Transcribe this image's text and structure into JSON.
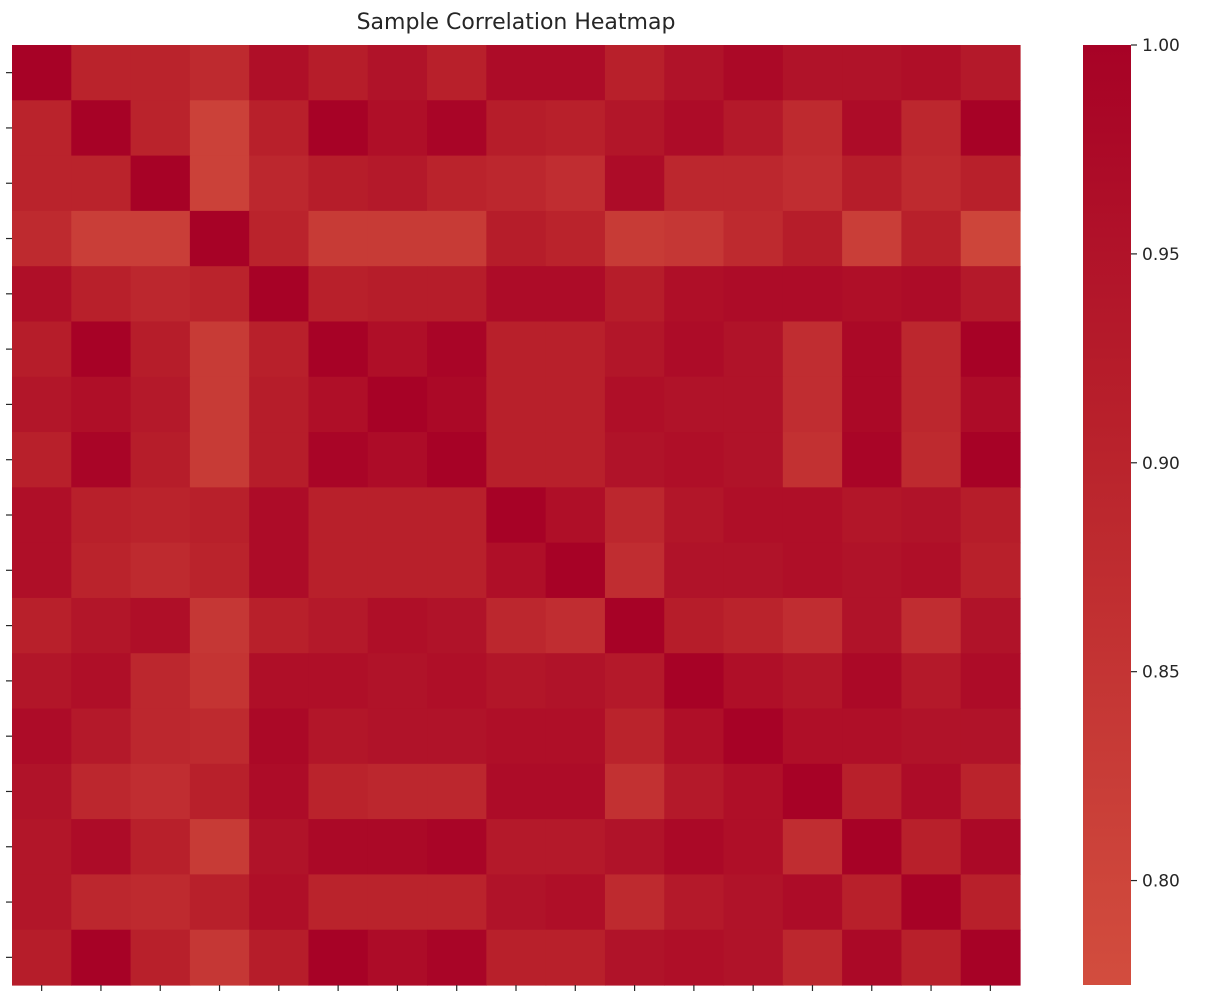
{
  "chart_data": {
    "type": "heatmap",
    "title": "Sample Correlation Heatmap",
    "xlabel": "",
    "ylabel": "",
    "tick_labels_shown": false,
    "rows": 17,
    "cols": 17,
    "colorbar": {
      "min": 0.775,
      "max": 1.0,
      "ticks": [
        0.8,
        0.85,
        0.9,
        0.95,
        1.0
      ],
      "tick_labels": [
        "0.80",
        "0.85",
        "0.90",
        "0.95",
        "1.00"
      ],
      "colors": {
        "low": "#d24d3e",
        "mid": "#b8202b",
        "high": "#a70226"
      }
    },
    "matrix": [
      [
        1.0,
        0.9,
        0.9,
        0.88,
        0.96,
        0.92,
        0.95,
        0.91,
        0.97,
        0.97,
        0.91,
        0.95,
        0.98,
        0.95,
        0.95,
        0.96,
        0.93
      ],
      [
        0.9,
        1.0,
        0.9,
        0.81,
        0.91,
        1.0,
        0.96,
        0.99,
        0.92,
        0.91,
        0.94,
        0.97,
        0.93,
        0.88,
        0.97,
        0.89,
        1.0
      ],
      [
        0.9,
        0.9,
        1.0,
        0.81,
        0.89,
        0.92,
        0.93,
        0.9,
        0.89,
        0.87,
        0.97,
        0.89,
        0.89,
        0.87,
        0.92,
        0.88,
        0.91
      ],
      [
        0.88,
        0.82,
        0.82,
        1.0,
        0.9,
        0.83,
        0.83,
        0.83,
        0.92,
        0.9,
        0.83,
        0.84,
        0.88,
        0.92,
        0.82,
        0.91,
        0.8
      ],
      [
        0.96,
        0.91,
        0.89,
        0.9,
        1.0,
        0.91,
        0.92,
        0.92,
        0.97,
        0.97,
        0.92,
        0.96,
        0.97,
        0.97,
        0.96,
        0.97,
        0.93
      ],
      [
        0.92,
        1.0,
        0.92,
        0.83,
        0.91,
        1.0,
        0.96,
        0.99,
        0.91,
        0.91,
        0.94,
        0.97,
        0.95,
        0.87,
        0.98,
        0.89,
        1.0
      ],
      [
        0.94,
        0.96,
        0.93,
        0.83,
        0.92,
        0.96,
        1.0,
        0.98,
        0.91,
        0.91,
        0.96,
        0.95,
        0.95,
        0.87,
        0.98,
        0.89,
        0.97
      ],
      [
        0.91,
        0.99,
        0.92,
        0.83,
        0.92,
        0.99,
        0.97,
        1.0,
        0.91,
        0.91,
        0.95,
        0.96,
        0.95,
        0.86,
        0.99,
        0.88,
        1.0
      ],
      [
        0.96,
        0.91,
        0.9,
        0.91,
        0.97,
        0.91,
        0.91,
        0.91,
        1.0,
        0.96,
        0.89,
        0.94,
        0.96,
        0.96,
        0.94,
        0.95,
        0.92
      ],
      [
        0.96,
        0.9,
        0.88,
        0.9,
        0.97,
        0.91,
        0.91,
        0.91,
        0.96,
        1.0,
        0.87,
        0.95,
        0.95,
        0.96,
        0.95,
        0.96,
        0.91
      ],
      [
        0.91,
        0.94,
        0.96,
        0.84,
        0.91,
        0.93,
        0.96,
        0.95,
        0.89,
        0.87,
        1.0,
        0.92,
        0.9,
        0.87,
        0.95,
        0.87,
        0.95
      ],
      [
        0.94,
        0.96,
        0.89,
        0.85,
        0.96,
        0.96,
        0.95,
        0.96,
        0.94,
        0.95,
        0.93,
        1.0,
        0.96,
        0.94,
        0.98,
        0.93,
        0.97
      ],
      [
        0.97,
        0.93,
        0.89,
        0.88,
        0.98,
        0.94,
        0.95,
        0.95,
        0.96,
        0.96,
        0.9,
        0.96,
        1.0,
        0.96,
        0.96,
        0.95,
        0.95
      ],
      [
        0.95,
        0.89,
        0.87,
        0.91,
        0.97,
        0.9,
        0.89,
        0.89,
        0.97,
        0.97,
        0.86,
        0.93,
        0.96,
        1.0,
        0.91,
        0.97,
        0.9
      ],
      [
        0.94,
        0.97,
        0.91,
        0.83,
        0.95,
        0.98,
        0.98,
        0.99,
        0.93,
        0.93,
        0.95,
        0.98,
        0.96,
        0.87,
        1.0,
        0.91,
        0.98
      ],
      [
        0.94,
        0.89,
        0.88,
        0.91,
        0.96,
        0.9,
        0.9,
        0.9,
        0.95,
        0.96,
        0.88,
        0.93,
        0.95,
        0.97,
        0.91,
        1.0,
        0.91
      ],
      [
        0.92,
        1.0,
        0.91,
        0.84,
        0.92,
        1.0,
        0.97,
        0.99,
        0.91,
        0.91,
        0.95,
        0.96,
        0.95,
        0.89,
        0.98,
        0.91,
        1.0
      ]
    ]
  }
}
